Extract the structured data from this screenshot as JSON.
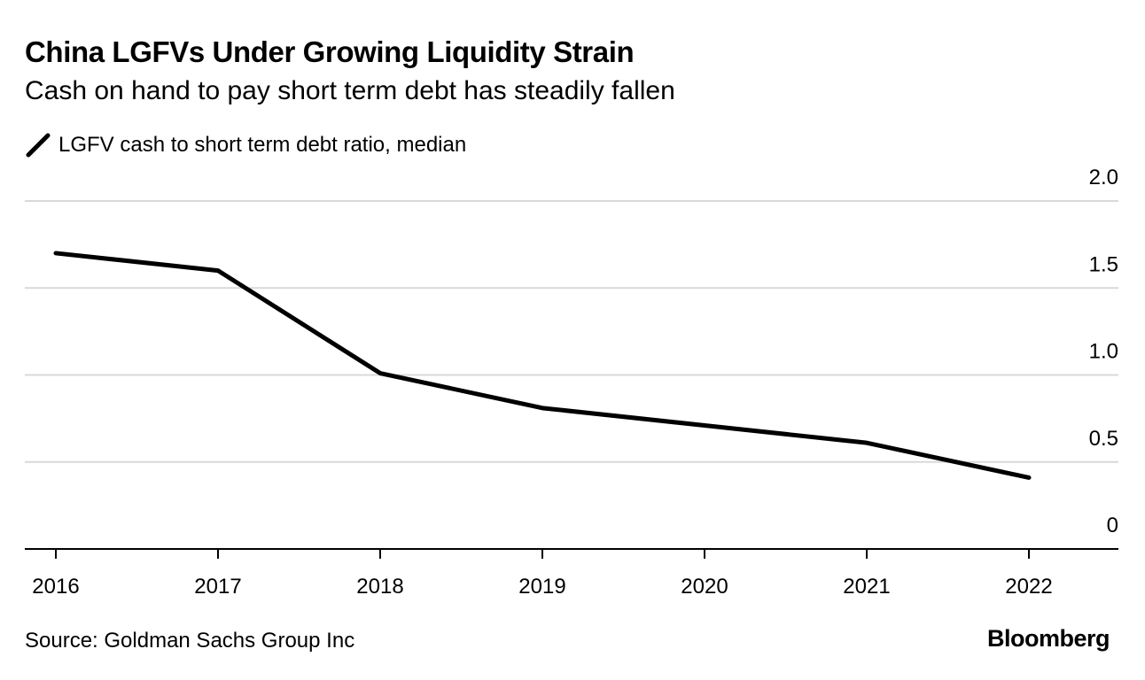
{
  "chart_data": {
    "type": "line",
    "title": "China LGFVs Under Growing Liquidity Strain",
    "subtitle": "Cash on hand to pay short term debt has steadily fallen",
    "x": [
      "2016",
      "2017",
      "2018",
      "2019",
      "2020",
      "2021",
      "2022"
    ],
    "series": [
      {
        "name": "LGFV cash to short term debt ratio, median",
        "values": [
          1.7,
          1.6,
          1.01,
          0.81,
          0.71,
          0.61,
          0.41
        ],
        "color": "#000000"
      }
    ],
    "yticks": [
      "0",
      "0.5",
      "1.0",
      "1.5",
      "2.0"
    ],
    "ylim": [
      0,
      2.0
    ],
    "xlabel": "",
    "ylabel": "",
    "grid": true,
    "legend_position": "top-left",
    "source": "Source: Goldman Sachs Group Inc",
    "brand": "Bloomberg"
  },
  "colors": {
    "line": "#000000",
    "grid": "#d9d9d9",
    "axis": "#000000"
  }
}
